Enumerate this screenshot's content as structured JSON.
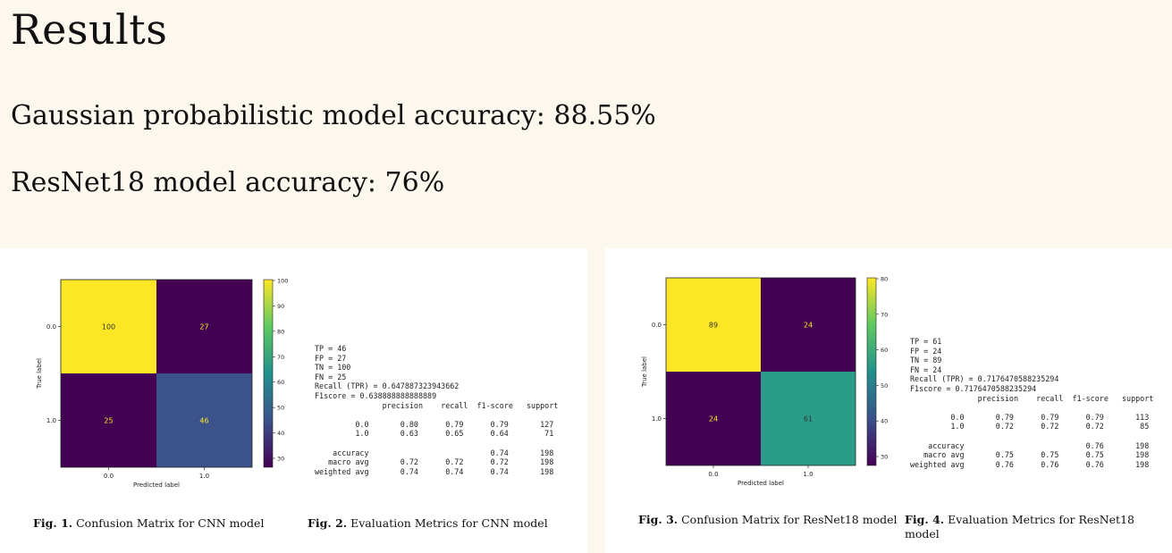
{
  "heading": "Results",
  "lines": {
    "gaussian": "Gaussian probabilistic model accuracy: 88.55%",
    "resnet": "ResNet18 model accuracy: 76%"
  },
  "colors": {
    "page_bg": "#fcf8ee",
    "panel_bg": "#ffffff"
  },
  "fig1": {
    "caption_num": "Fig. 1.",
    "caption_text": "Confusion Matrix for CNN model",
    "matrix": [
      [
        100,
        27
      ],
      [
        25,
        46
      ]
    ],
    "cell_colors": [
      [
        "#fde725",
        "#440154"
      ],
      [
        "#440154",
        "#3b528b"
      ]
    ],
    "cell_text_colors": [
      [
        "#333333",
        "#fde725"
      ],
      [
        "#fde725",
        "#fde725"
      ]
    ],
    "cell_labels": [
      [
        "100",
        "27"
      ],
      [
        "25",
        "46"
      ]
    ],
    "x_ticks": [
      "0.0",
      "1.0"
    ],
    "y_ticks": [
      "0.0",
      "1.0"
    ],
    "xlabel": "Predicted label",
    "ylabel": "True label",
    "colorbar_ticks": [
      "100",
      "90",
      "80",
      "70",
      "60",
      "50",
      "40",
      "30"
    ]
  },
  "fig2": {
    "caption_num": "Fig. 2.",
    "caption_text": "Evaluation Metrics for CNN model",
    "metrics": "TP = 46\nFP = 27\nTN = 100\nFN = 25\nRecall (TPR) = 0.647887323943662\nF1score = 0.638888888888889\n               precision    recall  f1-score   support\n\n         0.0       0.80      0.79      0.79       127\n         1.0       0.63      0.65      0.64        71\n\n    accuracy                           0.74       198\n   macro avg       0.72      0.72      0.72       198\nweighted avg       0.74      0.74      0.74       198"
  },
  "fig3": {
    "caption_num": "Fig. 3.",
    "caption_text": "Confusion Matrix for ResNet18 model",
    "matrix": [
      [
        89,
        24
      ],
      [
        24,
        61
      ]
    ],
    "cell_colors": [
      [
        "#fde725",
        "#440154"
      ],
      [
        "#440154",
        "#2a9d8a"
      ]
    ],
    "cell_text_colors": [
      [
        "#333333",
        "#fde725"
      ],
      [
        "#fde725",
        "#333333"
      ]
    ],
    "cell_labels": [
      [
        "89",
        "24"
      ],
      [
        "24",
        "61"
      ]
    ],
    "x_ticks": [
      "0.0",
      "1.0"
    ],
    "y_ticks": [
      "0.0",
      "1.0"
    ],
    "xlabel": "Predicted label",
    "ylabel": "True label",
    "colorbar_ticks": [
      "80",
      "70",
      "60",
      "50",
      "40",
      "30"
    ]
  },
  "fig4": {
    "caption_num": "Fig. 4.",
    "caption_text": "Evaluation Metrics for ResNet18 model",
    "metrics": "TP = 61\nFP = 24\nTN = 89\nFN = 24\nRecall (TPR) = 0.7176470588235294\nF1score = 0.7176470588235294\n               precision    recall  f1-score   support\n\n         0.0       0.79      0.79      0.79       113\n         1.0       0.72      0.72      0.72        85\n\n    accuracy                           0.76       198\n   macro avg       0.75      0.75      0.75       198\nweighted avg       0.76      0.76      0.76       198"
  }
}
